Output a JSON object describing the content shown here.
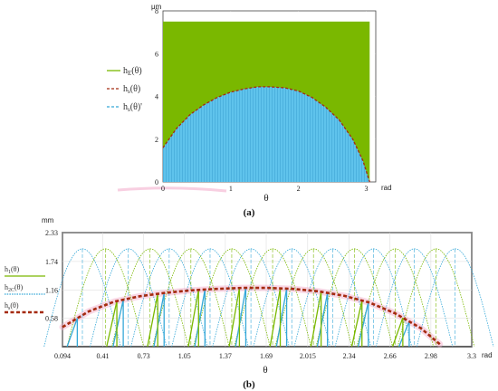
{
  "chart_data": [
    {
      "panel": "(a)",
      "type": "area",
      "y_unit": "μm",
      "x_unit": "rad",
      "xlabel": "θ",
      "xlim": [
        0,
        3.14
      ],
      "ylim": [
        0,
        8
      ],
      "x_ticks": [
        "0",
        "1",
        "2",
        "3"
      ],
      "y_ticks": [
        "0",
        "2",
        "4",
        "6",
        "8"
      ],
      "grid": true,
      "legend_position": "left",
      "series": [
        {
          "name": "hE(θ)",
          "color": "#7ab800",
          "fill_top": 7.5,
          "x": [
            0,
            3.05
          ]
        },
        {
          "name": "hs(θ)",
          "color": "#a52a10",
          "x": [
            0,
            0.2,
            0.4,
            0.6,
            0.8,
            1.0,
            1.2,
            1.4,
            1.571,
            1.8,
            2.0,
            2.2,
            2.4,
            2.6,
            2.8,
            2.95,
            3.05
          ],
          "y": [
            1.6,
            2.5,
            3.15,
            3.6,
            3.95,
            4.2,
            4.35,
            4.45,
            4.45,
            4.4,
            4.25,
            3.95,
            3.5,
            2.9,
            2.0,
            1.0,
            0.0
          ]
        },
        {
          "name": "hs(θ)'",
          "color": "#35a8d8",
          "x": [
            0,
            0.2,
            0.4,
            0.6,
            0.8,
            1.0,
            1.2,
            1.4,
            1.571,
            1.8,
            2.0,
            2.2,
            2.4,
            2.6,
            2.8,
            2.95,
            3.05
          ],
          "y": [
            1.6,
            2.5,
            3.15,
            3.6,
            3.95,
            4.2,
            4.35,
            4.45,
            4.45,
            4.4,
            4.25,
            3.95,
            3.5,
            2.9,
            2.0,
            1.0,
            0.0
          ]
        }
      ]
    },
    {
      "panel": "(b)",
      "type": "line",
      "y_unit": "mm",
      "x_unit": "rad",
      "xlabel": "θ",
      "xlim": [
        0.094,
        3.3
      ],
      "ylim": [
        0,
        2.33
      ],
      "x_ticks": [
        "0.094",
        "0.41",
        "0.73",
        "1.05",
        "1.37",
        "1.69",
        "2.015",
        "2.34",
        "2.66",
        "2.98",
        "3.3"
      ],
      "y_ticks": [
        "0.58",
        "1.16",
        "1.74",
        "2.33"
      ],
      "grid": true,
      "legend_position": "left",
      "arch_centers_blue": [
        0.25,
        0.61,
        0.93,
        1.25,
        1.57,
        1.89,
        2.21,
        2.53,
        2.85,
        3.17
      ],
      "arch_centers_green": [
        0.43,
        0.78,
        1.1,
        1.42,
        1.74,
        2.06,
        2.38,
        2.7,
        3.02
      ],
      "arch_halfwidth": 0.3,
      "arch_peak": 2.0,
      "series": [
        {
          "name": "h1(θ)",
          "color": "#7ab800"
        },
        {
          "name": "h2C(θ)",
          "color": "#3aa8d8"
        },
        {
          "name": "hs(θ)",
          "color": "#a52a10",
          "x": [
            0.094,
            0.3,
            0.5,
            0.7,
            0.9,
            1.1,
            1.3,
            1.5,
            1.571,
            1.7,
            1.9,
            2.1,
            2.3,
            2.5,
            2.7,
            2.9,
            3.05
          ],
          "y": [
            0.4,
            0.72,
            0.92,
            1.03,
            1.1,
            1.15,
            1.18,
            1.2,
            1.2,
            1.2,
            1.18,
            1.13,
            1.04,
            0.9,
            0.68,
            0.38,
            0.05
          ]
        }
      ]
    }
  ],
  "legend_a": [
    {
      "main": "h",
      "sub": "E",
      "tail": "(θ)"
    },
    {
      "main": "h",
      "sub": "s",
      "tail": "(θ)"
    },
    {
      "main": "h",
      "sub": "s",
      "tail": "(θ)'"
    }
  ],
  "legend_b": [
    {
      "main": "h",
      "sub": "1",
      "tail": "(θ)"
    },
    {
      "main": "h",
      "sub": "2C",
      "tail": "(θ)"
    },
    {
      "main": "h",
      "sub": "s",
      "tail": "(θ)"
    }
  ],
  "labels": {
    "a_unit_y": "μm",
    "a_unit_x": "rad",
    "a_xlabel": "θ",
    "a_panel": "(a)",
    "b_unit_y": "mm",
    "b_unit_x": "rad",
    "b_xlabel": "θ",
    "b_panel": "(b)"
  },
  "colors": {
    "green": "#7ab800",
    "blue": "#35a8d8",
    "red": "#a52a10",
    "pink": "#f2a8c8"
  }
}
